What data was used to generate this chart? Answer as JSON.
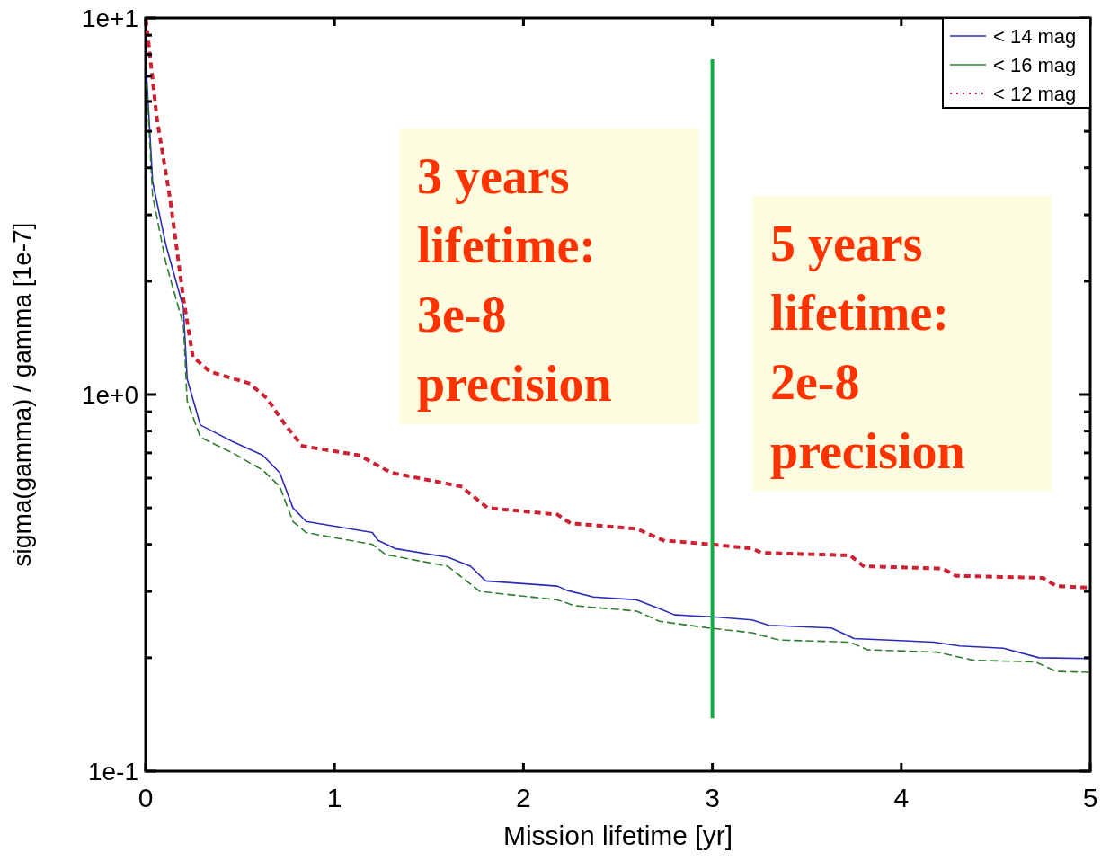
{
  "chart_data": {
    "type": "line",
    "xlabel": "Mission lifetime [yr]",
    "ylabel": "sigma(gamma) / gamma [1e-7]",
    "log": "y",
    "xlim": [
      0,
      5
    ],
    "ylim": [
      0.1,
      10
    ],
    "xticks": [
      0,
      1,
      2,
      3,
      4,
      5
    ],
    "yticks": [
      {
        "value": 0.1,
        "label": "1e-1"
      },
      {
        "value": 0.2,
        "label": null
      },
      {
        "value": 0.3,
        "label": null
      },
      {
        "value": 0.4,
        "label": null
      },
      {
        "value": 0.5,
        "label": null
      },
      {
        "value": 0.6,
        "label": null
      },
      {
        "value": 0.7,
        "label": null
      },
      {
        "value": 0.8,
        "label": null
      },
      {
        "value": 0.9,
        "label": null
      },
      {
        "value": 1,
        "label": "1e+0"
      },
      {
        "value": 2,
        "label": null
      },
      {
        "value": 3,
        "label": null
      },
      {
        "value": 4,
        "label": null
      },
      {
        "value": 5,
        "label": null
      },
      {
        "value": 6,
        "label": null
      },
      {
        "value": 7,
        "label": null
      },
      {
        "value": 8,
        "label": null
      },
      {
        "value": 9,
        "label": null
      },
      {
        "value": 10,
        "label": "1e+1"
      }
    ],
    "grid": false,
    "legend": "top right",
    "marker": "none",
    "series": [
      {
        "name": "< 14 mag",
        "color": "#2b2bb8",
        "line_style": "solid",
        "x": [
          0.005,
          0.037,
          0.107,
          0.2,
          0.22,
          0.29,
          0.46,
          0.62,
          0.71,
          0.78,
          0.85,
          1.2,
          1.23,
          1.32,
          1.6,
          1.72,
          1.8,
          2.18,
          2.23,
          2.37,
          2.6,
          2.72,
          2.8,
          3.0,
          3.21,
          3.3,
          3.63,
          3.75,
          4.17,
          4.31,
          4.54,
          4.73,
          5
        ],
        "values": [
          7.1,
          3.68,
          2.5,
          1.7,
          1.1,
          0.83,
          0.75,
          0.69,
          0.62,
          0.5,
          0.46,
          0.43,
          0.41,
          0.39,
          0.37,
          0.35,
          0.32,
          0.31,
          0.302,
          0.29,
          0.285,
          0.27,
          0.26,
          0.257,
          0.252,
          0.244,
          0.24,
          0.225,
          0.22,
          0.215,
          0.212,
          0.2,
          0.199
        ]
      },
      {
        "name": "< 16 mag",
        "color": "#2e7d2e",
        "line_style": "dashed",
        "x": [
          0.005,
          0.037,
          0.107,
          0.2,
          0.22,
          0.29,
          0.46,
          0.62,
          0.71,
          0.78,
          0.85,
          1.2,
          1.27,
          1.6,
          1.77,
          2.18,
          2.27,
          2.6,
          2.72,
          2.98,
          3.21,
          3.35,
          3.73,
          3.82,
          4.19,
          4.38,
          4.71,
          4.82,
          5
        ],
        "values": [
          6.7,
          3.38,
          2.24,
          1.53,
          0.96,
          0.77,
          0.7,
          0.63,
          0.57,
          0.46,
          0.43,
          0.4,
          0.376,
          0.35,
          0.3,
          0.285,
          0.275,
          0.266,
          0.25,
          0.24,
          0.233,
          0.223,
          0.22,
          0.21,
          0.207,
          0.197,
          0.195,
          0.184,
          0.183
        ]
      },
      {
        "name": "< 12 mag",
        "color": "#cc2233",
        "line_style": "dotted",
        "x": [
          0.003,
          0.06,
          0.13,
          0.2,
          0.25,
          0.34,
          0.55,
          0.64,
          0.74,
          0.83,
          1.13,
          1.2,
          1.3,
          1.67,
          1.81,
          2.18,
          2.25,
          2.6,
          2.74,
          3.0,
          3.21,
          3.26,
          3.73,
          3.8,
          4.22,
          4.29,
          4.75,
          4.82,
          5
        ],
        "values": [
          9.8,
          5.4,
          3.3,
          1.8,
          1.26,
          1.15,
          1.07,
          0.98,
          0.83,
          0.73,
          0.69,
          0.66,
          0.62,
          0.57,
          0.5,
          0.48,
          0.455,
          0.44,
          0.41,
          0.4,
          0.39,
          0.38,
          0.374,
          0.35,
          0.345,
          0.33,
          0.326,
          0.31,
          0.307
        ]
      }
    ],
    "ref_lines": [
      {
        "axis": "x",
        "value": 3,
        "color": "#11aa44",
        "line_style": "solid"
      }
    ],
    "annotations": [
      "3 years\nlifetime:\n3e-8\nprecision",
      "5 years\nlifetime:\n2e-8\nprecision"
    ]
  }
}
